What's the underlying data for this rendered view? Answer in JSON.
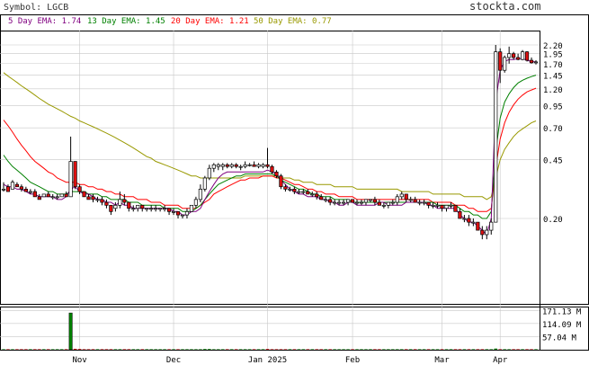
{
  "header": {
    "symbol_label": "Symbol: LGCB",
    "brand": "stockta.com",
    "ema5": {
      "label": "5 Day EMA: 1.74",
      "color": "#800080"
    },
    "ema13": {
      "label": "13 Day EMA: 1.45",
      "color": "#008000"
    },
    "ema20": {
      "label": "20 Day EMA: 1.21",
      "color": "#ff0000"
    },
    "ema50": {
      "label": "50 Day EMA: 0.77",
      "color": "#999900"
    }
  },
  "colors": {
    "up_candle": "#ffffff",
    "down_candle": "#e01010",
    "candle_outline": "#000000",
    "volume_bar": "#008000",
    "volume_down": "#cc0000",
    "grid": "#c8c8c8"
  },
  "chart_data": {
    "type": "candlestick",
    "scale": "log",
    "price_axis_labels": [
      "2.20",
      "1.95",
      "1.70",
      "1.45",
      "1.20",
      "0.95",
      "0.70",
      "0.45",
      "0.20"
    ],
    "price_axis_values": [
      2.2,
      1.95,
      1.7,
      1.45,
      1.2,
      0.95,
      0.7,
      0.45,
      0.2
    ],
    "volume_axis_labels": [
      "171.13 M",
      "114.09 M",
      "57.04 M"
    ],
    "volume_axis_values": [
      171.13,
      114.09,
      57.04
    ],
    "x_labels": [
      "Nov",
      "Dec",
      "Jan 2025",
      "Feb",
      "Mar",
      "Apr"
    ],
    "x_label_index": [
      17,
      38,
      59,
      78,
      98,
      111
    ],
    "ema5": [
      0.32,
      0.31,
      0.31,
      0.3,
      0.3,
      0.29,
      0.28,
      0.28,
      0.27,
      0.27,
      0.27,
      0.27,
      0.26,
      0.26,
      0.27,
      0.3,
      0.31,
      0.29,
      0.28,
      0.28,
      0.27,
      0.26,
      0.26,
      0.25,
      0.25,
      0.24,
      0.25,
      0.24,
      0.24,
      0.23,
      0.23,
      0.23,
      0.23,
      0.23,
      0.23,
      0.23,
      0.23,
      0.23,
      0.22,
      0.22,
      0.21,
      0.21,
      0.22,
      0.22,
      0.23,
      0.26,
      0.29,
      0.32,
      0.35,
      0.37,
      0.38,
      0.38,
      0.38,
      0.38,
      0.38,
      0.38,
      0.38,
      0.38,
      0.38,
      0.39,
      0.38,
      0.37,
      0.34,
      0.32,
      0.3,
      0.29,
      0.28,
      0.28,
      0.27,
      0.27,
      0.27,
      0.26,
      0.26,
      0.25,
      0.25,
      0.24,
      0.24,
      0.25,
      0.25,
      0.24,
      0.24,
      0.24,
      0.24,
      0.24,
      0.25,
      0.25,
      0.24,
      0.24,
      0.24,
      0.24,
      0.25,
      0.25,
      0.25,
      0.25,
      0.25,
      0.24,
      0.24,
      0.23,
      0.23,
      0.23,
      0.23,
      0.23,
      0.21,
      0.2,
      0.19,
      0.19,
      0.18,
      0.17,
      0.16,
      0.2,
      1.0,
      1.55,
      1.75,
      1.8,
      1.8,
      1.82,
      1.82,
      1.78,
      1.75,
      1.74
    ],
    "ema13": [
      0.48,
      0.44,
      0.41,
      0.39,
      0.37,
      0.35,
      0.33,
      0.32,
      0.31,
      0.3,
      0.29,
      0.29,
      0.28,
      0.28,
      0.28,
      0.29,
      0.29,
      0.29,
      0.29,
      0.28,
      0.28,
      0.28,
      0.27,
      0.27,
      0.26,
      0.26,
      0.26,
      0.26,
      0.25,
      0.25,
      0.25,
      0.24,
      0.24,
      0.24,
      0.24,
      0.24,
      0.23,
      0.23,
      0.23,
      0.23,
      0.22,
      0.22,
      0.22,
      0.23,
      0.24,
      0.26,
      0.28,
      0.3,
      0.32,
      0.33,
      0.34,
      0.35,
      0.36,
      0.36,
      0.37,
      0.37,
      0.37,
      0.37,
      0.37,
      0.37,
      0.37,
      0.36,
      0.34,
      0.33,
      0.32,
      0.31,
      0.3,
      0.3,
      0.29,
      0.28,
      0.28,
      0.27,
      0.27,
      0.27,
      0.26,
      0.26,
      0.26,
      0.26,
      0.25,
      0.25,
      0.25,
      0.25,
      0.25,
      0.25,
      0.25,
      0.25,
      0.25,
      0.25,
      0.25,
      0.25,
      0.25,
      0.25,
      0.25,
      0.25,
      0.25,
      0.25,
      0.25,
      0.24,
      0.24,
      0.24,
      0.24,
      0.24,
      0.23,
      0.22,
      0.22,
      0.21,
      0.21,
      0.2,
      0.2,
      0.22,
      0.5,
      0.8,
      1.0,
      1.12,
      1.22,
      1.3,
      1.35,
      1.39,
      1.42,
      1.45
    ],
    "ema20": [
      0.78,
      0.72,
      0.66,
      0.6,
      0.55,
      0.51,
      0.47,
      0.44,
      0.42,
      0.4,
      0.38,
      0.37,
      0.35,
      0.34,
      0.33,
      0.33,
      0.33,
      0.32,
      0.32,
      0.31,
      0.31,
      0.3,
      0.3,
      0.29,
      0.29,
      0.28,
      0.28,
      0.27,
      0.27,
      0.27,
      0.26,
      0.26,
      0.26,
      0.25,
      0.25,
      0.25,
      0.24,
      0.24,
      0.24,
      0.24,
      0.23,
      0.23,
      0.23,
      0.23,
      0.24,
      0.25,
      0.26,
      0.28,
      0.29,
      0.3,
      0.31,
      0.32,
      0.33,
      0.34,
      0.34,
      0.35,
      0.35,
      0.35,
      0.36,
      0.36,
      0.36,
      0.35,
      0.35,
      0.34,
      0.33,
      0.32,
      0.32,
      0.31,
      0.3,
      0.3,
      0.29,
      0.29,
      0.28,
      0.28,
      0.28,
      0.27,
      0.27,
      0.27,
      0.27,
      0.26,
      0.26,
      0.26,
      0.26,
      0.26,
      0.26,
      0.26,
      0.26,
      0.26,
      0.26,
      0.26,
      0.26,
      0.26,
      0.26,
      0.26,
      0.26,
      0.26,
      0.25,
      0.25,
      0.25,
      0.25,
      0.25,
      0.24,
      0.24,
      0.24,
      0.23,
      0.23,
      0.22,
      0.22,
      0.22,
      0.23,
      0.4,
      0.6,
      0.75,
      0.87,
      0.96,
      1.04,
      1.1,
      1.15,
      1.18,
      1.21
    ],
    "ema50": [
      1.5,
      1.43,
      1.37,
      1.31,
      1.25,
      1.2,
      1.15,
      1.1,
      1.05,
      1.01,
      0.97,
      0.94,
      0.91,
      0.88,
      0.85,
      0.82,
      0.8,
      0.77,
      0.75,
      0.73,
      0.71,
      0.69,
      0.67,
      0.65,
      0.63,
      0.61,
      0.59,
      0.57,
      0.55,
      0.53,
      0.51,
      0.49,
      0.47,
      0.46,
      0.44,
      0.43,
      0.42,
      0.41,
      0.4,
      0.39,
      0.38,
      0.37,
      0.36,
      0.36,
      0.35,
      0.35,
      0.35,
      0.35,
      0.35,
      0.35,
      0.35,
      0.35,
      0.35,
      0.35,
      0.36,
      0.36,
      0.36,
      0.36,
      0.36,
      0.36,
      0.36,
      0.36,
      0.35,
      0.35,
      0.35,
      0.34,
      0.34,
      0.33,
      0.33,
      0.33,
      0.32,
      0.32,
      0.32,
      0.32,
      0.31,
      0.31,
      0.31,
      0.31,
      0.31,
      0.3,
      0.3,
      0.3,
      0.3,
      0.3,
      0.3,
      0.3,
      0.3,
      0.3,
      0.3,
      0.29,
      0.29,
      0.29,
      0.29,
      0.29,
      0.29,
      0.29,
      0.28,
      0.28,
      0.28,
      0.28,
      0.28,
      0.28,
      0.28,
      0.27,
      0.27,
      0.27,
      0.27,
      0.27,
      0.26,
      0.27,
      0.35,
      0.45,
      0.52,
      0.57,
      0.62,
      0.66,
      0.69,
      0.72,
      0.75,
      0.77
    ],
    "candles": [
      [
        0.3,
        0.33,
        0.29,
        0.3
      ],
      [
        0.31,
        0.32,
        0.29,
        0.29
      ],
      [
        0.3,
        0.34,
        0.3,
        0.33
      ],
      [
        0.32,
        0.33,
        0.31,
        0.31
      ],
      [
        0.31,
        0.32,
        0.29,
        0.3
      ],
      [
        0.3,
        0.31,
        0.29,
        0.29
      ],
      [
        0.29,
        0.3,
        0.28,
        0.29
      ],
      [
        0.29,
        0.3,
        0.27,
        0.27
      ],
      [
        0.27,
        0.28,
        0.26,
        0.26
      ],
      [
        0.27,
        0.28,
        0.27,
        0.28
      ],
      [
        0.28,
        0.29,
        0.27,
        0.27
      ],
      [
        0.27,
        0.28,
        0.26,
        0.27
      ],
      [
        0.27,
        0.28,
        0.26,
        0.27
      ],
      [
        0.27,
        0.28,
        0.27,
        0.28
      ],
      [
        0.28,
        0.29,
        0.27,
        0.27
      ],
      [
        0.27,
        0.62,
        0.27,
        0.44
      ],
      [
        0.44,
        0.44,
        0.3,
        0.31
      ],
      [
        0.31,
        0.32,
        0.28,
        0.29
      ],
      [
        0.29,
        0.29,
        0.27,
        0.27
      ],
      [
        0.27,
        0.28,
        0.26,
        0.26
      ],
      [
        0.27,
        0.28,
        0.25,
        0.26
      ],
      [
        0.26,
        0.27,
        0.25,
        0.26
      ],
      [
        0.26,
        0.27,
        0.24,
        0.25
      ],
      [
        0.25,
        0.26,
        0.23,
        0.24
      ],
      [
        0.24,
        0.24,
        0.21,
        0.22
      ],
      [
        0.23,
        0.25,
        0.22,
        0.24
      ],
      [
        0.24,
        0.29,
        0.23,
        0.26
      ],
      [
        0.26,
        0.28,
        0.24,
        0.25
      ],
      [
        0.25,
        0.25,
        0.22,
        0.23
      ],
      [
        0.23,
        0.24,
        0.22,
        0.23
      ],
      [
        0.23,
        0.24,
        0.22,
        0.24
      ],
      [
        0.24,
        0.24,
        0.22,
        0.23
      ],
      [
        0.23,
        0.23,
        0.22,
        0.23
      ],
      [
        0.23,
        0.24,
        0.22,
        0.23
      ],
      [
        0.23,
        0.24,
        0.22,
        0.23
      ],
      [
        0.23,
        0.23,
        0.22,
        0.23
      ],
      [
        0.23,
        0.24,
        0.22,
        0.23
      ],
      [
        0.23,
        0.23,
        0.21,
        0.22
      ],
      [
        0.22,
        0.23,
        0.21,
        0.22
      ],
      [
        0.22,
        0.22,
        0.2,
        0.21
      ],
      [
        0.21,
        0.21,
        0.2,
        0.21
      ],
      [
        0.21,
        0.23,
        0.2,
        0.22
      ],
      [
        0.22,
        0.24,
        0.22,
        0.24
      ],
      [
        0.24,
        0.27,
        0.23,
        0.26
      ],
      [
        0.26,
        0.32,
        0.25,
        0.3
      ],
      [
        0.3,
        0.36,
        0.29,
        0.35
      ],
      [
        0.35,
        0.42,
        0.34,
        0.4
      ],
      [
        0.4,
        0.43,
        0.38,
        0.42
      ],
      [
        0.41,
        0.43,
        0.39,
        0.42
      ],
      [
        0.41,
        0.43,
        0.39,
        0.42
      ],
      [
        0.42,
        0.43,
        0.4,
        0.41
      ],
      [
        0.41,
        0.43,
        0.4,
        0.42
      ],
      [
        0.42,
        0.43,
        0.4,
        0.41
      ],
      [
        0.41,
        0.42,
        0.39,
        0.41
      ],
      [
        0.41,
        0.44,
        0.4,
        0.42
      ],
      [
        0.42,
        0.43,
        0.41,
        0.42
      ],
      [
        0.42,
        0.44,
        0.41,
        0.41
      ],
      [
        0.41,
        0.43,
        0.4,
        0.42
      ],
      [
        0.41,
        0.43,
        0.4,
        0.42
      ],
      [
        0.42,
        0.53,
        0.4,
        0.41
      ],
      [
        0.41,
        0.42,
        0.37,
        0.38
      ],
      [
        0.38,
        0.39,
        0.35,
        0.36
      ],
      [
        0.36,
        0.37,
        0.3,
        0.31
      ],
      [
        0.31,
        0.32,
        0.29,
        0.3
      ],
      [
        0.3,
        0.31,
        0.29,
        0.3
      ],
      [
        0.3,
        0.31,
        0.28,
        0.29
      ],
      [
        0.29,
        0.3,
        0.28,
        0.29
      ],
      [
        0.29,
        0.3,
        0.28,
        0.29
      ],
      [
        0.29,
        0.3,
        0.28,
        0.28
      ],
      [
        0.28,
        0.29,
        0.27,
        0.28
      ],
      [
        0.28,
        0.29,
        0.26,
        0.27
      ],
      [
        0.27,
        0.28,
        0.26,
        0.26
      ],
      [
        0.26,
        0.27,
        0.25,
        0.26
      ],
      [
        0.26,
        0.27,
        0.24,
        0.25
      ],
      [
        0.25,
        0.26,
        0.24,
        0.25
      ],
      [
        0.25,
        0.26,
        0.24,
        0.25
      ],
      [
        0.25,
        0.26,
        0.24,
        0.25
      ],
      [
        0.25,
        0.26,
        0.24,
        0.26
      ],
      [
        0.26,
        0.26,
        0.25,
        0.25
      ],
      [
        0.25,
        0.26,
        0.24,
        0.25
      ],
      [
        0.25,
        0.26,
        0.24,
        0.25
      ],
      [
        0.25,
        0.26,
        0.24,
        0.26
      ],
      [
        0.26,
        0.26,
        0.25,
        0.26
      ],
      [
        0.26,
        0.27,
        0.24,
        0.25
      ],
      [
        0.25,
        0.26,
        0.24,
        0.24
      ],
      [
        0.24,
        0.25,
        0.23,
        0.24
      ],
      [
        0.24,
        0.25,
        0.23,
        0.25
      ],
      [
        0.25,
        0.26,
        0.24,
        0.25
      ],
      [
        0.25,
        0.28,
        0.24,
        0.27
      ],
      [
        0.27,
        0.29,
        0.26,
        0.28
      ],
      [
        0.28,
        0.28,
        0.25,
        0.26
      ],
      [
        0.26,
        0.27,
        0.25,
        0.26
      ],
      [
        0.26,
        0.27,
        0.25,
        0.25
      ],
      [
        0.25,
        0.26,
        0.24,
        0.25
      ],
      [
        0.25,
        0.26,
        0.24,
        0.25
      ],
      [
        0.25,
        0.25,
        0.23,
        0.24
      ],
      [
        0.24,
        0.25,
        0.23,
        0.24
      ],
      [
        0.24,
        0.25,
        0.23,
        0.24
      ],
      [
        0.24,
        0.24,
        0.22,
        0.23
      ],
      [
        0.23,
        0.24,
        0.22,
        0.24
      ],
      [
        0.24,
        0.25,
        0.23,
        0.24
      ],
      [
        0.24,
        0.24,
        0.22,
        0.22
      ],
      [
        0.22,
        0.23,
        0.2,
        0.2
      ],
      [
        0.2,
        0.21,
        0.19,
        0.2
      ],
      [
        0.2,
        0.21,
        0.18,
        0.19
      ],
      [
        0.19,
        0.2,
        0.18,
        0.19
      ],
      [
        0.19,
        0.19,
        0.17,
        0.17
      ],
      [
        0.17,
        0.18,
        0.15,
        0.16
      ],
      [
        0.16,
        0.18,
        0.15,
        0.17
      ],
      [
        0.17,
        0.2,
        0.16,
        0.19
      ],
      [
        0.19,
        2.2,
        0.19,
        2.0
      ],
      [
        2.0,
        2.1,
        1.3,
        1.55
      ],
      [
        1.55,
        1.9,
        1.5,
        1.85
      ],
      [
        1.85,
        2.15,
        1.7,
        1.95
      ],
      [
        1.95,
        2.0,
        1.8,
        1.85
      ],
      [
        1.85,
        1.95,
        1.78,
        1.8
      ],
      [
        1.8,
        2.05,
        1.78,
        2.0
      ],
      [
        2.0,
        2.02,
        1.75,
        1.78
      ],
      [
        1.78,
        1.85,
        1.7,
        1.72
      ],
      [
        1.72,
        1.78,
        1.68,
        1.74
      ]
    ],
    "volume": [
      2,
      2,
      2,
      2,
      2,
      2,
      2,
      2,
      2,
      2,
      2,
      2,
      2,
      2,
      2,
      160,
      4,
      3,
      2,
      2,
      2,
      2,
      2,
      2,
      2,
      2,
      2,
      2,
      2,
      2,
      2,
      2,
      2,
      2,
      2,
      2,
      2,
      2,
      2,
      2,
      2,
      2,
      2,
      2,
      2,
      3,
      3,
      2,
      2,
      2,
      2,
      2,
      2,
      2,
      2,
      2,
      2,
      2,
      2,
      3,
      2,
      2,
      2,
      2,
      2,
      2,
      2,
      2,
      2,
      2,
      2,
      2,
      2,
      2,
      2,
      2,
      2,
      2,
      2,
      2,
      2,
      2,
      2,
      2,
      2,
      2,
      2,
      2,
      2,
      2,
      2,
      2,
      2,
      2,
      2,
      2,
      2,
      2,
      2,
      2,
      2,
      2,
      2,
      2,
      2,
      2,
      2,
      2,
      2,
      2,
      5,
      2,
      2,
      2,
      2,
      2,
      2,
      2,
      2,
      2
    ]
  }
}
